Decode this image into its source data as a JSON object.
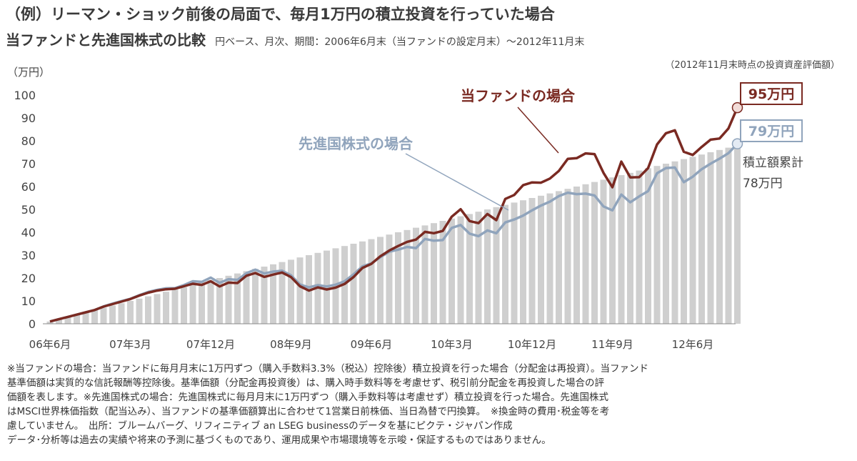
{
  "title": "（例）リーマン・ショック前後の局面で、毎月1万円の積立投資を行っていた場合",
  "subtitle": "当ファンドと先進国株式の比較",
  "subtitle_note": "円ベース、月次、期間：2006年6月末（当ファンドの設定月末）〜2012年11月末",
  "eval_note": "（2012年11月末時点の投資資産評価額）",
  "chart_data": {
    "type": "bar",
    "ylabel": "（万円）",
    "ylim": [
      0,
      100
    ],
    "yticks": [
      0,
      10,
      20,
      30,
      40,
      50,
      60,
      70,
      80,
      90,
      100
    ],
    "xtick_labels": [
      {
        "index": 0,
        "label": "06年6月"
      },
      {
        "index": 9,
        "label": "07年3月"
      },
      {
        "index": 18,
        "label": "07年12月"
      },
      {
        "index": 27,
        "label": "08年9月"
      },
      {
        "index": 36,
        "label": "09年6月"
      },
      {
        "index": 45,
        "label": "10年3月"
      },
      {
        "index": 54,
        "label": "10年12月"
      },
      {
        "index": 63,
        "label": "11年9月"
      },
      {
        "index": 72,
        "label": "12年6月"
      }
    ],
    "bars": {
      "name": "積立額累計",
      "values": [
        1,
        2,
        3,
        4,
        5,
        6,
        7,
        8,
        9,
        10,
        11,
        12,
        13,
        14,
        15,
        16,
        17,
        18,
        19,
        20,
        21,
        22,
        23,
        24,
        25,
        26,
        27,
        28,
        29,
        30,
        31,
        32,
        33,
        34,
        35,
        36,
        37,
        38,
        39,
        40,
        41,
        42,
        43,
        44,
        45,
        46,
        47,
        48,
        49,
        50,
        51,
        52,
        53,
        54,
        55,
        56,
        57,
        58,
        59,
        60,
        61,
        62,
        63,
        64,
        65,
        66,
        67,
        68,
        69,
        70,
        71,
        72,
        73,
        74,
        75,
        76,
        77,
        78
      ],
      "color": "#cfcfcf"
    },
    "series": [
      {
        "name": "当ファンドの場合",
        "color": "#7a2a22",
        "values": [
          1,
          2,
          3,
          4,
          5,
          6,
          7.5,
          8.6,
          9.7,
          10.8,
          12.3,
          13.6,
          14.5,
          15.1,
          15.3,
          16.4,
          17.5,
          17,
          18.6,
          16.3,
          18,
          17.8,
          21,
          22.2,
          20.5,
          21.5,
          22.4,
          20.4,
          16.4,
          14.5,
          15.9,
          15,
          15.8,
          17.4,
          20.4,
          24.4,
          26.2,
          29.5,
          32,
          34,
          35.8,
          36.8,
          40.2,
          39.6,
          40.6,
          46.8,
          50.1,
          44.9,
          44,
          48,
          45.3,
          54.6,
          56.3,
          60.6,
          61.8,
          61.7,
          63.5,
          66.8,
          72.1,
          72.4,
          74.5,
          74.2,
          66,
          59.7,
          70.9,
          64,
          64.1,
          68.1,
          78.4,
          83.3,
          84.6,
          75.2,
          73.8,
          77.3,
          80.5,
          81,
          85.4,
          94.5
        ]
      },
      {
        "name": "先進国株式の場合",
        "color": "#90a4bc",
        "values": [
          1,
          2,
          3,
          4,
          5,
          6,
          7.6,
          8.8,
          9.9,
          10.9,
          12.5,
          13.9,
          14.8,
          15.5,
          15.6,
          16.9,
          18.6,
          18.3,
          20.2,
          17.9,
          19.5,
          19.2,
          22.1,
          23.7,
          22,
          22.8,
          23.2,
          21.2,
          17.2,
          15.9,
          16.9,
          16.3,
          17.1,
          18.6,
          21.6,
          25.1,
          26.4,
          29.1,
          31.5,
          32.4,
          33.6,
          33.1,
          37.1,
          36.3,
          36.6,
          41.9,
          43.2,
          39.4,
          38.3,
          40.8,
          39.6,
          44.3,
          45.6,
          47.3,
          49.6,
          51.7,
          53.4,
          55.8,
          57.3,
          56.7,
          56.9,
          56.1,
          51.3,
          49.6,
          56.5,
          53.1,
          55.7,
          58,
          65.8,
          68.1,
          68.3,
          61.9,
          64.3,
          67.6,
          70,
          72.2,
          74.6,
          78.7
        ]
      }
    ],
    "annotations": {
      "fund_label": "当ファンドの場合",
      "msci_label": "先進国株式の場合",
      "fund_end_value": "95万円",
      "msci_end_value": "79万円",
      "accum_label": "積立額累計",
      "accum_value": "78万円"
    }
  },
  "footnotes": [
    "※当ファンドの場合：当ファンドに毎月月末に1万円ずつ（購入手数料3.3%（税込）控除後）積立投資を行った場合（分配金は再投資）。当ファンド",
    "基準価額は実質的な信託報酬等控除後。基準価額（分配金再投資後）は、購入時手数料等を考慮せず、税引前分配金を再投資した場合の評",
    "価額を表します。※先進国株式の場合：先進国株式に毎月月末に1万円ずつ（購入手数料等は考慮せず）積立投資を行った場合。先進国株式",
    "はMSCI世界株価指数（配当込み）、当ファンドの基準価額算出に合わせて1営業日前株価、当日為替で円換算。　※換金時の費用･税金等を考",
    "慮していません。　出所：ブルームバーグ、リフィニティブ an LSEG businessのデータを基にピクテ・ジャパン作成",
    "データ･分析等は過去の実績や将来の予測に基づくものであり、運用成果や市場環境等を示唆・保証するものではありません。"
  ]
}
